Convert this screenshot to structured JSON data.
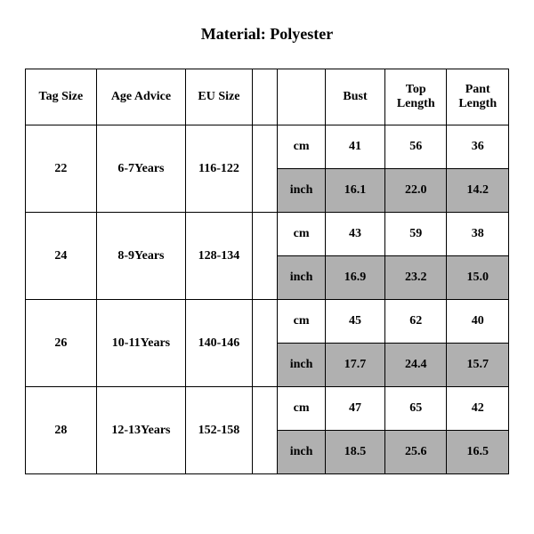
{
  "title": "Material: Polyester",
  "columns": {
    "tag_size": "Tag Size",
    "age_advice": "Age Advice",
    "eu_size": "EU Size",
    "blank": "",
    "bust": "Bust",
    "top_length": "Top Length",
    "pant_length": "Pant Length"
  },
  "units": {
    "cm": "cm",
    "inch": "inch"
  },
  "rows": [
    {
      "tag": "22",
      "age": "6-7Years",
      "eu": "116-122",
      "cm": {
        "bust": "41",
        "top": "56",
        "pant": "36"
      },
      "inch": {
        "bust": "16.1",
        "top": "22.0",
        "pant": "14.2"
      }
    },
    {
      "tag": "24",
      "age": "8-9Years",
      "eu": "128-134",
      "cm": {
        "bust": "43",
        "top": "59",
        "pant": "38"
      },
      "inch": {
        "bust": "16.9",
        "top": "23.2",
        "pant": "15.0"
      }
    },
    {
      "tag": "26",
      "age": "10-11Years",
      "eu": "140-146",
      "cm": {
        "bust": "45",
        "top": "62",
        "pant": "40"
      },
      "inch": {
        "bust": "17.7",
        "top": "24.4",
        "pant": "15.7"
      }
    },
    {
      "tag": "28",
      "age": "12-13Years",
      "eu": "152-158",
      "cm": {
        "bust": "47",
        "top": "65",
        "pant": "42"
      },
      "inch": {
        "bust": "18.5",
        "top": "25.6",
        "pant": "16.5"
      }
    }
  ],
  "style": {
    "shade_color": "#b0b0b0",
    "border_color": "#000000",
    "font_family": "Times New Roman",
    "title_fontsize": 18,
    "cell_fontsize": 14,
    "background": "#ffffff"
  }
}
